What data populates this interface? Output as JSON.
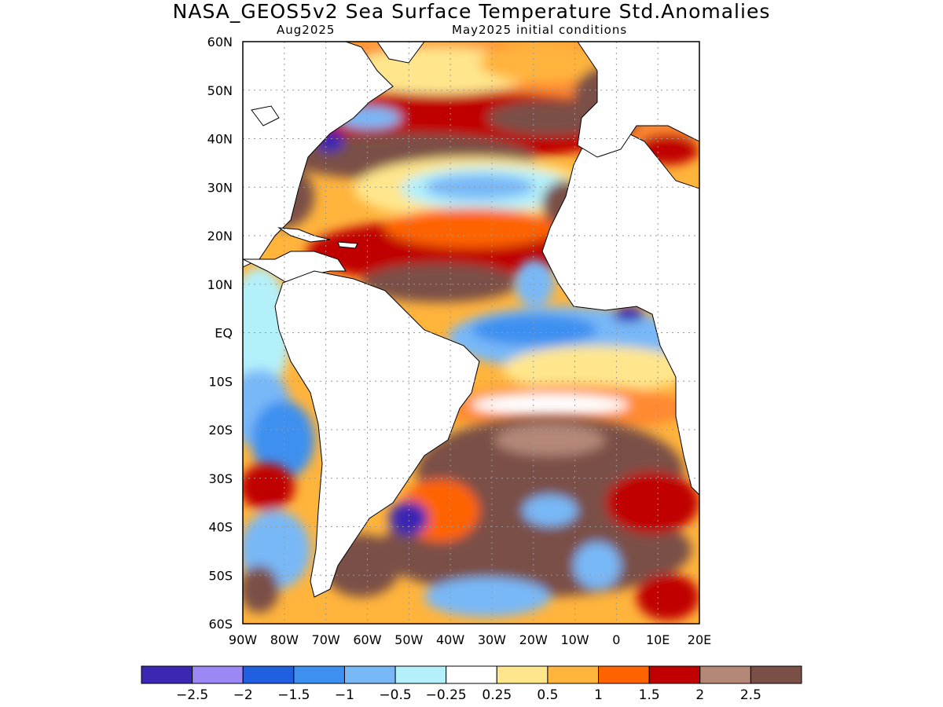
{
  "header": {
    "title": "NASA_GEOS5v2 Sea Surface Temperature Std.Anomalies",
    "valid_month": "Aug2025",
    "initial_conditions": "May2025 initial conditions"
  },
  "map": {
    "region": "Atlantic Ocean",
    "lon_range": [
      -90,
      20
    ],
    "lat_range": [
      -60,
      60
    ],
    "lat_labels": [
      "60N",
      "50N",
      "40N",
      "30N",
      "20N",
      "10N",
      "EQ",
      "10S",
      "20S",
      "30S",
      "40S",
      "50S",
      "60S"
    ],
    "lon_labels": [
      "90W",
      "80W",
      "70W",
      "60W",
      "50W",
      "40W",
      "30W",
      "20W",
      "10W",
      "0",
      "10E",
      "20E"
    ],
    "land_color": "#ffffff",
    "grid": "dotted"
  },
  "legend": {
    "colors": [
      "#3a28b4",
      "#9d87f5",
      "#2060e0",
      "#3d90f0",
      "#78b8f7",
      "#b4f0fa",
      "#ffffff",
      "#ffe68c",
      "#ffb43c",
      "#ff6400",
      "#c00000",
      "#b48778",
      "#7a5046"
    ],
    "labels": [
      "−2.5",
      "−2",
      "−1.5",
      "−1",
      "−0.5",
      "−0.25",
      "0.25",
      "0.5",
      "1",
      "1.5",
      "2",
      "2.5"
    ]
  }
}
